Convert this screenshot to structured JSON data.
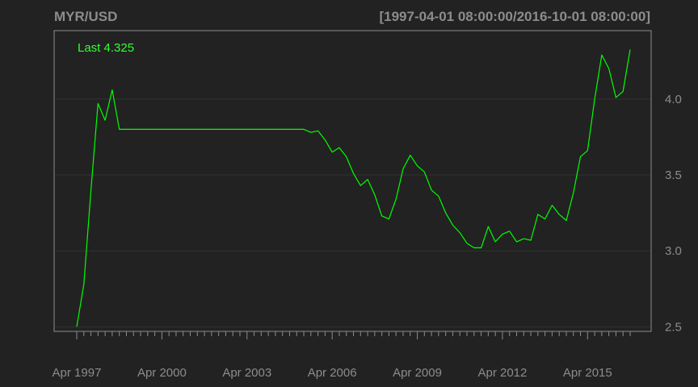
{
  "chart_data": {
    "type": "line",
    "title": "MYR/USD",
    "range_label": "[1997-04-01 08:00:00/2016-10-01 08:00:00]",
    "last_label": "Last 4.325",
    "xlabel": "",
    "ylabel": "",
    "x_ticks": [
      "Apr 1997",
      "Apr 2000",
      "Apr 2003",
      "Apr 2006",
      "Apr 2009",
      "Apr 2012",
      "Apr 2015"
    ],
    "y_ticks": [
      "2.5",
      "3.0",
      "3.5",
      "4.0"
    ],
    "ylim": [
      2.47,
      4.45
    ],
    "grid": true,
    "colors": {
      "background": "#222222",
      "line": "#00ff00",
      "axis": "#8c8c8c",
      "grid": "#333333",
      "last_label": "#33ff33"
    },
    "series": [
      {
        "values": [
          2.5,
          2.78,
          3.4,
          3.97,
          3.86,
          4.06,
          3.8,
          3.8,
          3.8,
          3.8,
          3.8,
          3.8,
          3.8,
          3.8,
          3.8,
          3.8,
          3.8,
          3.8,
          3.8,
          3.8,
          3.8,
          3.8,
          3.8,
          3.8,
          3.8,
          3.8,
          3.8,
          3.8,
          3.8,
          3.8,
          3.8,
          3.8,
          3.8,
          3.78,
          3.79,
          3.73,
          3.65,
          3.68,
          3.62,
          3.51,
          3.43,
          3.47,
          3.37,
          3.23,
          3.21,
          3.34,
          3.54,
          3.63,
          3.56,
          3.52,
          3.4,
          3.36,
          3.25,
          3.17,
          3.12,
          3.05,
          3.02,
          3.02,
          3.16,
          3.06,
          3.11,
          3.13,
          3.06,
          3.08,
          3.07,
          3.24,
          3.21,
          3.3,
          3.24,
          3.2,
          3.38,
          3.62,
          3.66,
          4.0,
          4.29,
          4.2,
          4.01,
          4.05,
          4.325
        ]
      }
    ]
  }
}
